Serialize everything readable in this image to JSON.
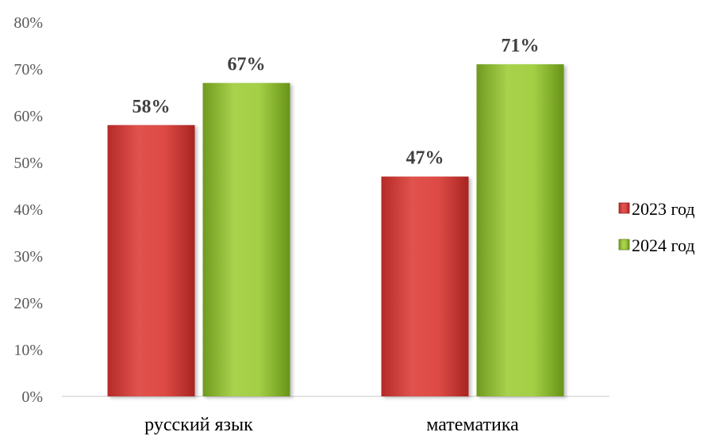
{
  "chart_data": {
    "type": "bar",
    "categories": [
      "русский язык",
      "математика"
    ],
    "series": [
      {
        "name": "2023 год",
        "values": [
          58,
          47
        ],
        "labels": [
          "58%",
          "47%"
        ],
        "color": "#d9413d"
      },
      {
        "name": "2024 год",
        "values": [
          67,
          71
        ],
        "labels": [
          "67%",
          "71%"
        ],
        "color": "#9bc53d"
      }
    ],
    "yticks": [
      "0%",
      "10%",
      "20%",
      "30%",
      "40%",
      "50%",
      "60%",
      "70%",
      "80%"
    ],
    "ylim": [
      0,
      80
    ],
    "grid": false,
    "legend_position": "right"
  }
}
